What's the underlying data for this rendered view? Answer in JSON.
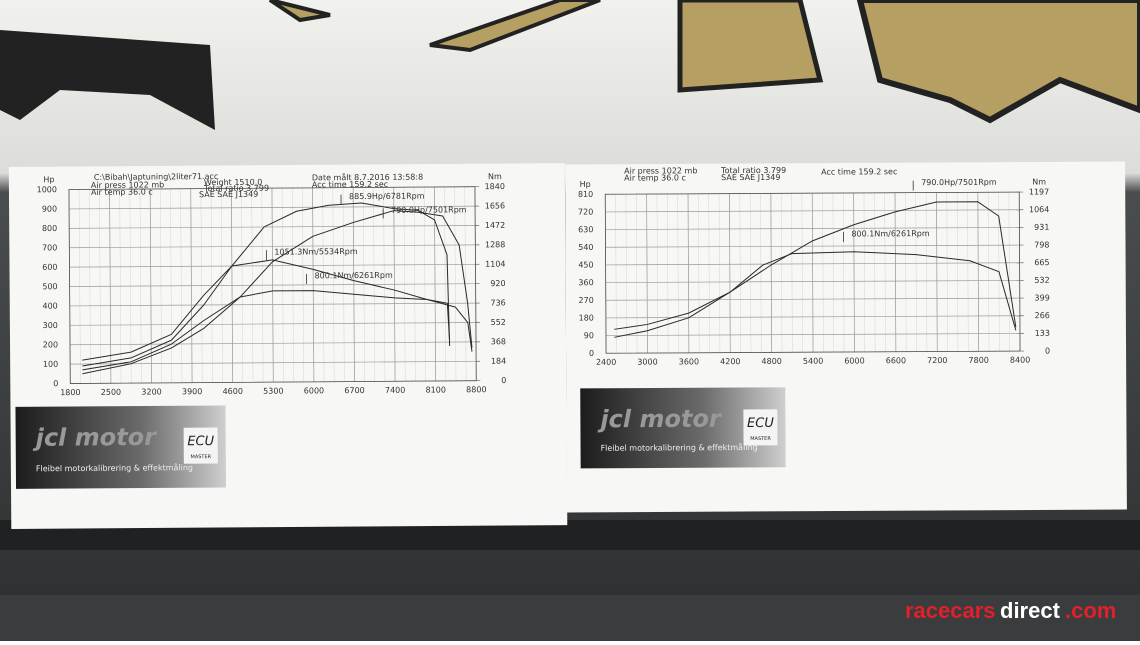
{
  "sheets": [
    {
      "header": [
        "C:\\Bibah\\Japtuning\\2liter71.acc",
        "Air press  1022 mb",
        "Air temp  36.0 c",
        "Weight  1510.0",
        "Total ratio 3.799",
        "SAE SAE J1349",
        "Date målt 8.7.2016 13:58:8",
        "Acc time  159.2 sec"
      ],
      "y_left_label": "Hp",
      "y_right_label": "Nm",
      "y_left_ticks": [
        0,
        100,
        200,
        300,
        400,
        500,
        600,
        700,
        800,
        900,
        1000
      ],
      "y_right_ticks": [
        0,
        184,
        368,
        552,
        736,
        920,
        1104,
        1288,
        1472,
        1656,
        1840
      ],
      "x_ticks": [
        1800,
        2500,
        3200,
        3900,
        4600,
        5300,
        6000,
        6700,
        7400,
        8100,
        8800
      ],
      "annotations": [
        "885.9Hp/6781Rpm",
        "790.0Hp/7501Rpm",
        "1051.3Nm/5534Rpm",
        "800.1Nm/6261Rpm"
      ],
      "logo": {
        "brand": "jcl motor",
        "tagline": "Fleibel motorkalibrering & effektmåling",
        "ecu": "ECU",
        "master": "MASTER"
      }
    },
    {
      "header": [
        "Air press  1022 mb",
        "Air temp  36.0 c",
        "Total ratio 3.799",
        "SAE SAE J1349",
        "Acc time  159.2 sec"
      ],
      "y_left_label": "Hp",
      "y_right_label": "Nm",
      "y_left_ticks": [
        0,
        90,
        180,
        270,
        360,
        450,
        540,
        630,
        720,
        810
      ],
      "y_right_ticks": [
        0,
        133,
        266,
        399,
        532,
        665,
        798,
        931,
        1064,
        1197
      ],
      "x_ticks": [
        2400,
        3000,
        3600,
        4200,
        4800,
        5400,
        6000,
        6600,
        7200,
        7800,
        8400
      ],
      "annotations": [
        "790.0Hp/7501Rpm",
        "800.1Nm/6261Rpm"
      ],
      "logo": {
        "brand": "jcl motor",
        "tagline": "Fleibel motorkalibrering & effektmåling",
        "ecu": "ECU",
        "master": "MASTER"
      }
    }
  ],
  "watermark": {
    "part1": "racecars",
    "part2": "direct",
    "part3": ".com"
  }
}
